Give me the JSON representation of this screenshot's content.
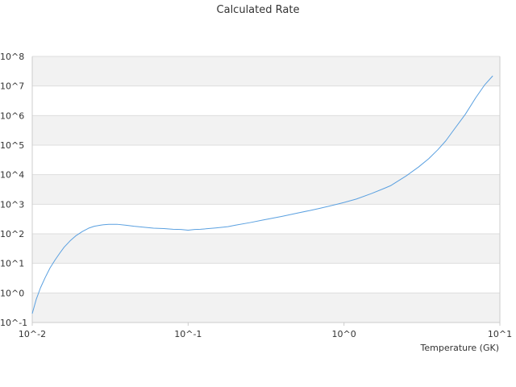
{
  "chart_data": {
    "type": "line",
    "title": "Calculated Rate",
    "xlabel": "Temperature (GK)",
    "ylabel": "",
    "x_scale": "log",
    "y_scale": "log",
    "xlim": [
      0.01,
      10
    ],
    "ylim": [
      0.1,
      100000000
    ],
    "x_ticks": [
      {
        "value": 0.01,
        "label": "10^-2"
      },
      {
        "value": 0.1,
        "label": "10^-1"
      },
      {
        "value": 1,
        "label": "10^0"
      },
      {
        "value": 10,
        "label": "10^1"
      }
    ],
    "y_ticks": [
      {
        "value": 0.1,
        "label": "10^-1"
      },
      {
        "value": 1,
        "label": "10^0"
      },
      {
        "value": 10,
        "label": "10^1"
      },
      {
        "value": 100,
        "label": "10^2"
      },
      {
        "value": 1000,
        "label": "10^3"
      },
      {
        "value": 10000,
        "label": "10^4"
      },
      {
        "value": 100000,
        "label": "10^5"
      },
      {
        "value": 1000000,
        "label": "10^6"
      },
      {
        "value": 10000000,
        "label": "10^7"
      },
      {
        "value": 100000000,
        "label": "10^8"
      }
    ],
    "grid": true,
    "banded_background": true,
    "colors": {
      "line": "#5aa0e0",
      "band": "#f2f2f2",
      "grid": "#dddddd",
      "axis": "#cccccc"
    },
    "series": [
      {
        "x": [
          0.01,
          0.0106,
          0.0113,
          0.0121,
          0.013,
          0.014,
          0.015,
          0.016,
          0.0175,
          0.019,
          0.021,
          0.023,
          0.025,
          0.028,
          0.031,
          0.035,
          0.04,
          0.045,
          0.05,
          0.06,
          0.07,
          0.08,
          0.09,
          0.1,
          0.11,
          0.12,
          0.15,
          0.18,
          0.2,
          0.25,
          0.3,
          0.4,
          0.5,
          0.6,
          0.7,
          0.8,
          0.9,
          1.0,
          1.2,
          1.5,
          1.8,
          2.0,
          2.5,
          3.0,
          3.5,
          4.0,
          4.5,
          5.0,
          6.0,
          7.0,
          8.0,
          9.0
        ],
        "y": [
          0.2,
          0.6,
          1.5,
          3.3,
          7.0,
          13,
          22,
          35,
          58,
          85,
          120,
          155,
          180,
          200,
          210,
          210,
          195,
          180,
          170,
          155,
          150,
          142,
          140,
          133,
          140,
          142,
          158,
          175,
          195,
          240,
          290,
          390,
          500,
          610,
          730,
          860,
          1000,
          1150,
          1500,
          2300,
          3400,
          4300,
          9000,
          18000,
          35000,
          70000,
          140000,
          300000,
          1100000,
          4000000,
          11000000,
          22000000
        ]
      }
    ]
  }
}
